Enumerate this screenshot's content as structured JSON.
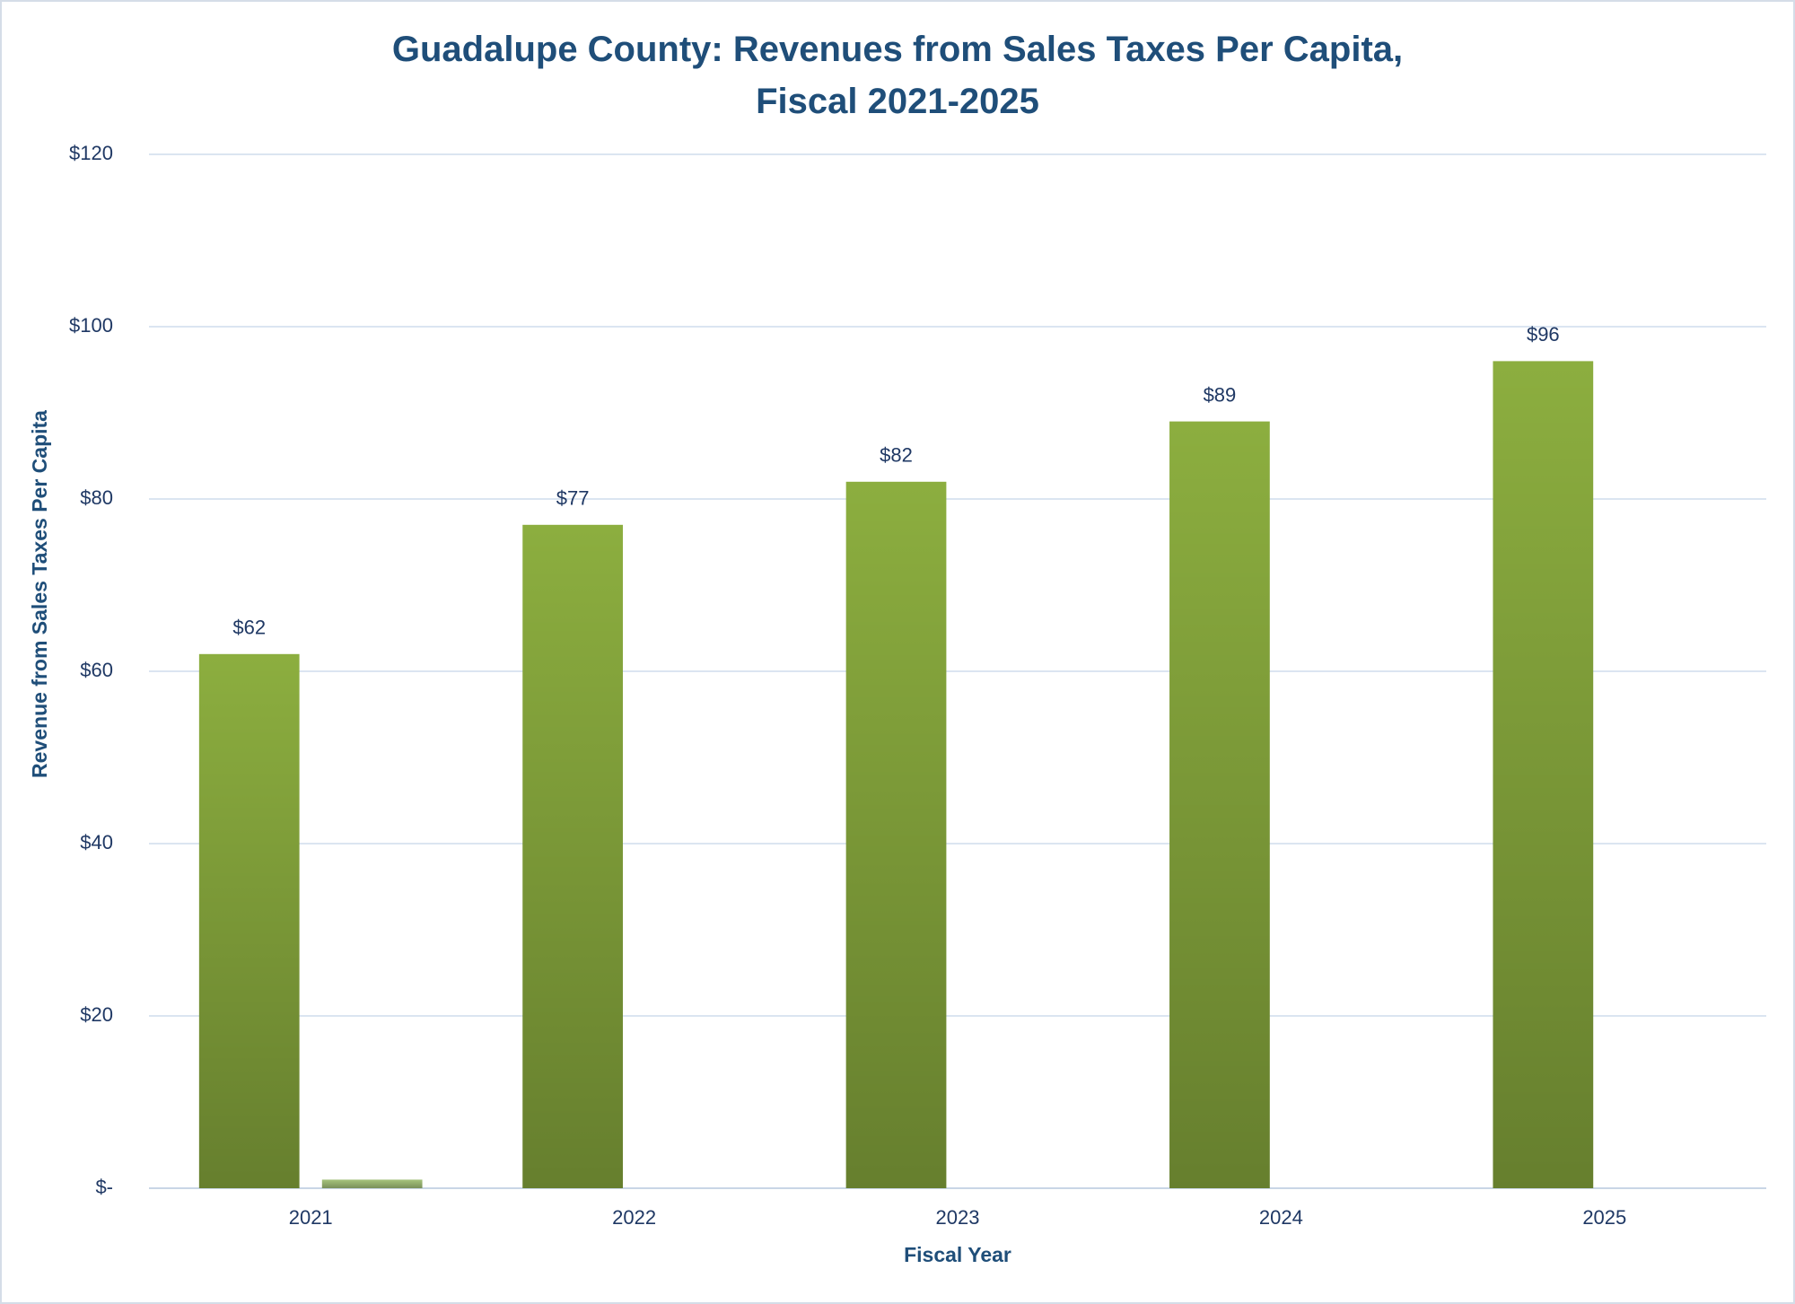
{
  "chart_data": {
    "type": "bar",
    "title": "Guadalupe County: Revenues from Sales Taxes Per Capita, Fiscal 2021-2025",
    "x_label": "Fiscal Year",
    "y_label": "Revenue from Sales Taxes Per Capita",
    "categories": [
      "2021",
      "2022",
      "2023",
      "2024",
      "2025"
    ],
    "series": [
      {
        "color": "#8cae3f",
        "values": [
          62,
          77,
          82,
          89,
          96
        ],
        "value_labels": [
          "$62",
          "$77",
          "$82",
          "$89",
          "$96"
        ]
      },
      {
        "color": "#a6c47c",
        "values": [
          1,
          null,
          null,
          null,
          null
        ]
      }
    ],
    "ylim": [
      0,
      120
    ],
    "yticks": [
      {
        "value": 0,
        "label": "$-"
      },
      {
        "value": 20,
        "label": "$20"
      },
      {
        "value": 40,
        "label": "$40"
      },
      {
        "value": 60,
        "label": "$60"
      },
      {
        "value": 80,
        "label": "$80"
      },
      {
        "value": 100,
        "label": "$100"
      },
      {
        "value": 120,
        "label": "$120"
      }
    ],
    "grid": true
  }
}
